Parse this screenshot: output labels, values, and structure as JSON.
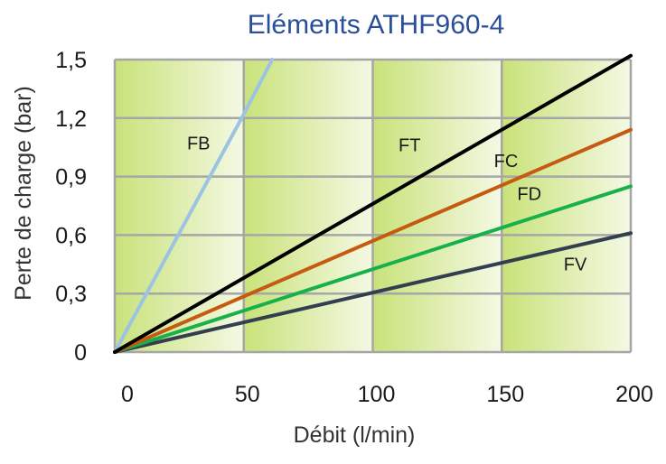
{
  "chart_data": {
    "type": "line",
    "title": "Eléments ATHF960-4",
    "xlabel": "Débit (l/min)",
    "ylabel": "Perte de charge (bar)",
    "xlim": [
      0,
      200
    ],
    "ylim": [
      0,
      1.5
    ],
    "x_ticks": [
      "0",
      "50",
      "100",
      "150",
      "200"
    ],
    "y_ticks": [
      "0",
      "0,3",
      "0,6",
      "0,9",
      "1,2",
      "1,5"
    ],
    "x_tick_values": [
      0,
      50,
      100,
      150,
      200
    ],
    "y_tick_values": [
      0,
      0.3,
      0.6,
      0.9,
      1.2,
      1.5
    ],
    "grid": true,
    "background_colors": [
      "#c9e27a",
      "#f4f9e4"
    ],
    "series": [
      {
        "name": "FB",
        "color": "#9cc3e2",
        "x": [
          0,
          50,
          61
        ],
        "y": [
          0,
          1.22,
          1.5
        ],
        "label_at": [
          28,
          1.04
        ]
      },
      {
        "name": "FT",
        "color": "#000000",
        "x": [
          0,
          200
        ],
        "y": [
          0,
          1.52
        ],
        "label_at": [
          110,
          1.03
        ]
      },
      {
        "name": "FC",
        "color": "#c55a11",
        "x": [
          0,
          200
        ],
        "y": [
          0,
          1.14
        ],
        "label_at": [
          147,
          0.95
        ]
      },
      {
        "name": "FD",
        "color": "#18b04b",
        "x": [
          0,
          200
        ],
        "y": [
          0,
          0.85
        ],
        "label_at": [
          156,
          0.78
        ]
      },
      {
        "name": "FV",
        "color": "#333f50",
        "x": [
          0,
          200
        ],
        "y": [
          0,
          0.61
        ],
        "label_at": [
          174,
          0.42
        ]
      }
    ]
  }
}
